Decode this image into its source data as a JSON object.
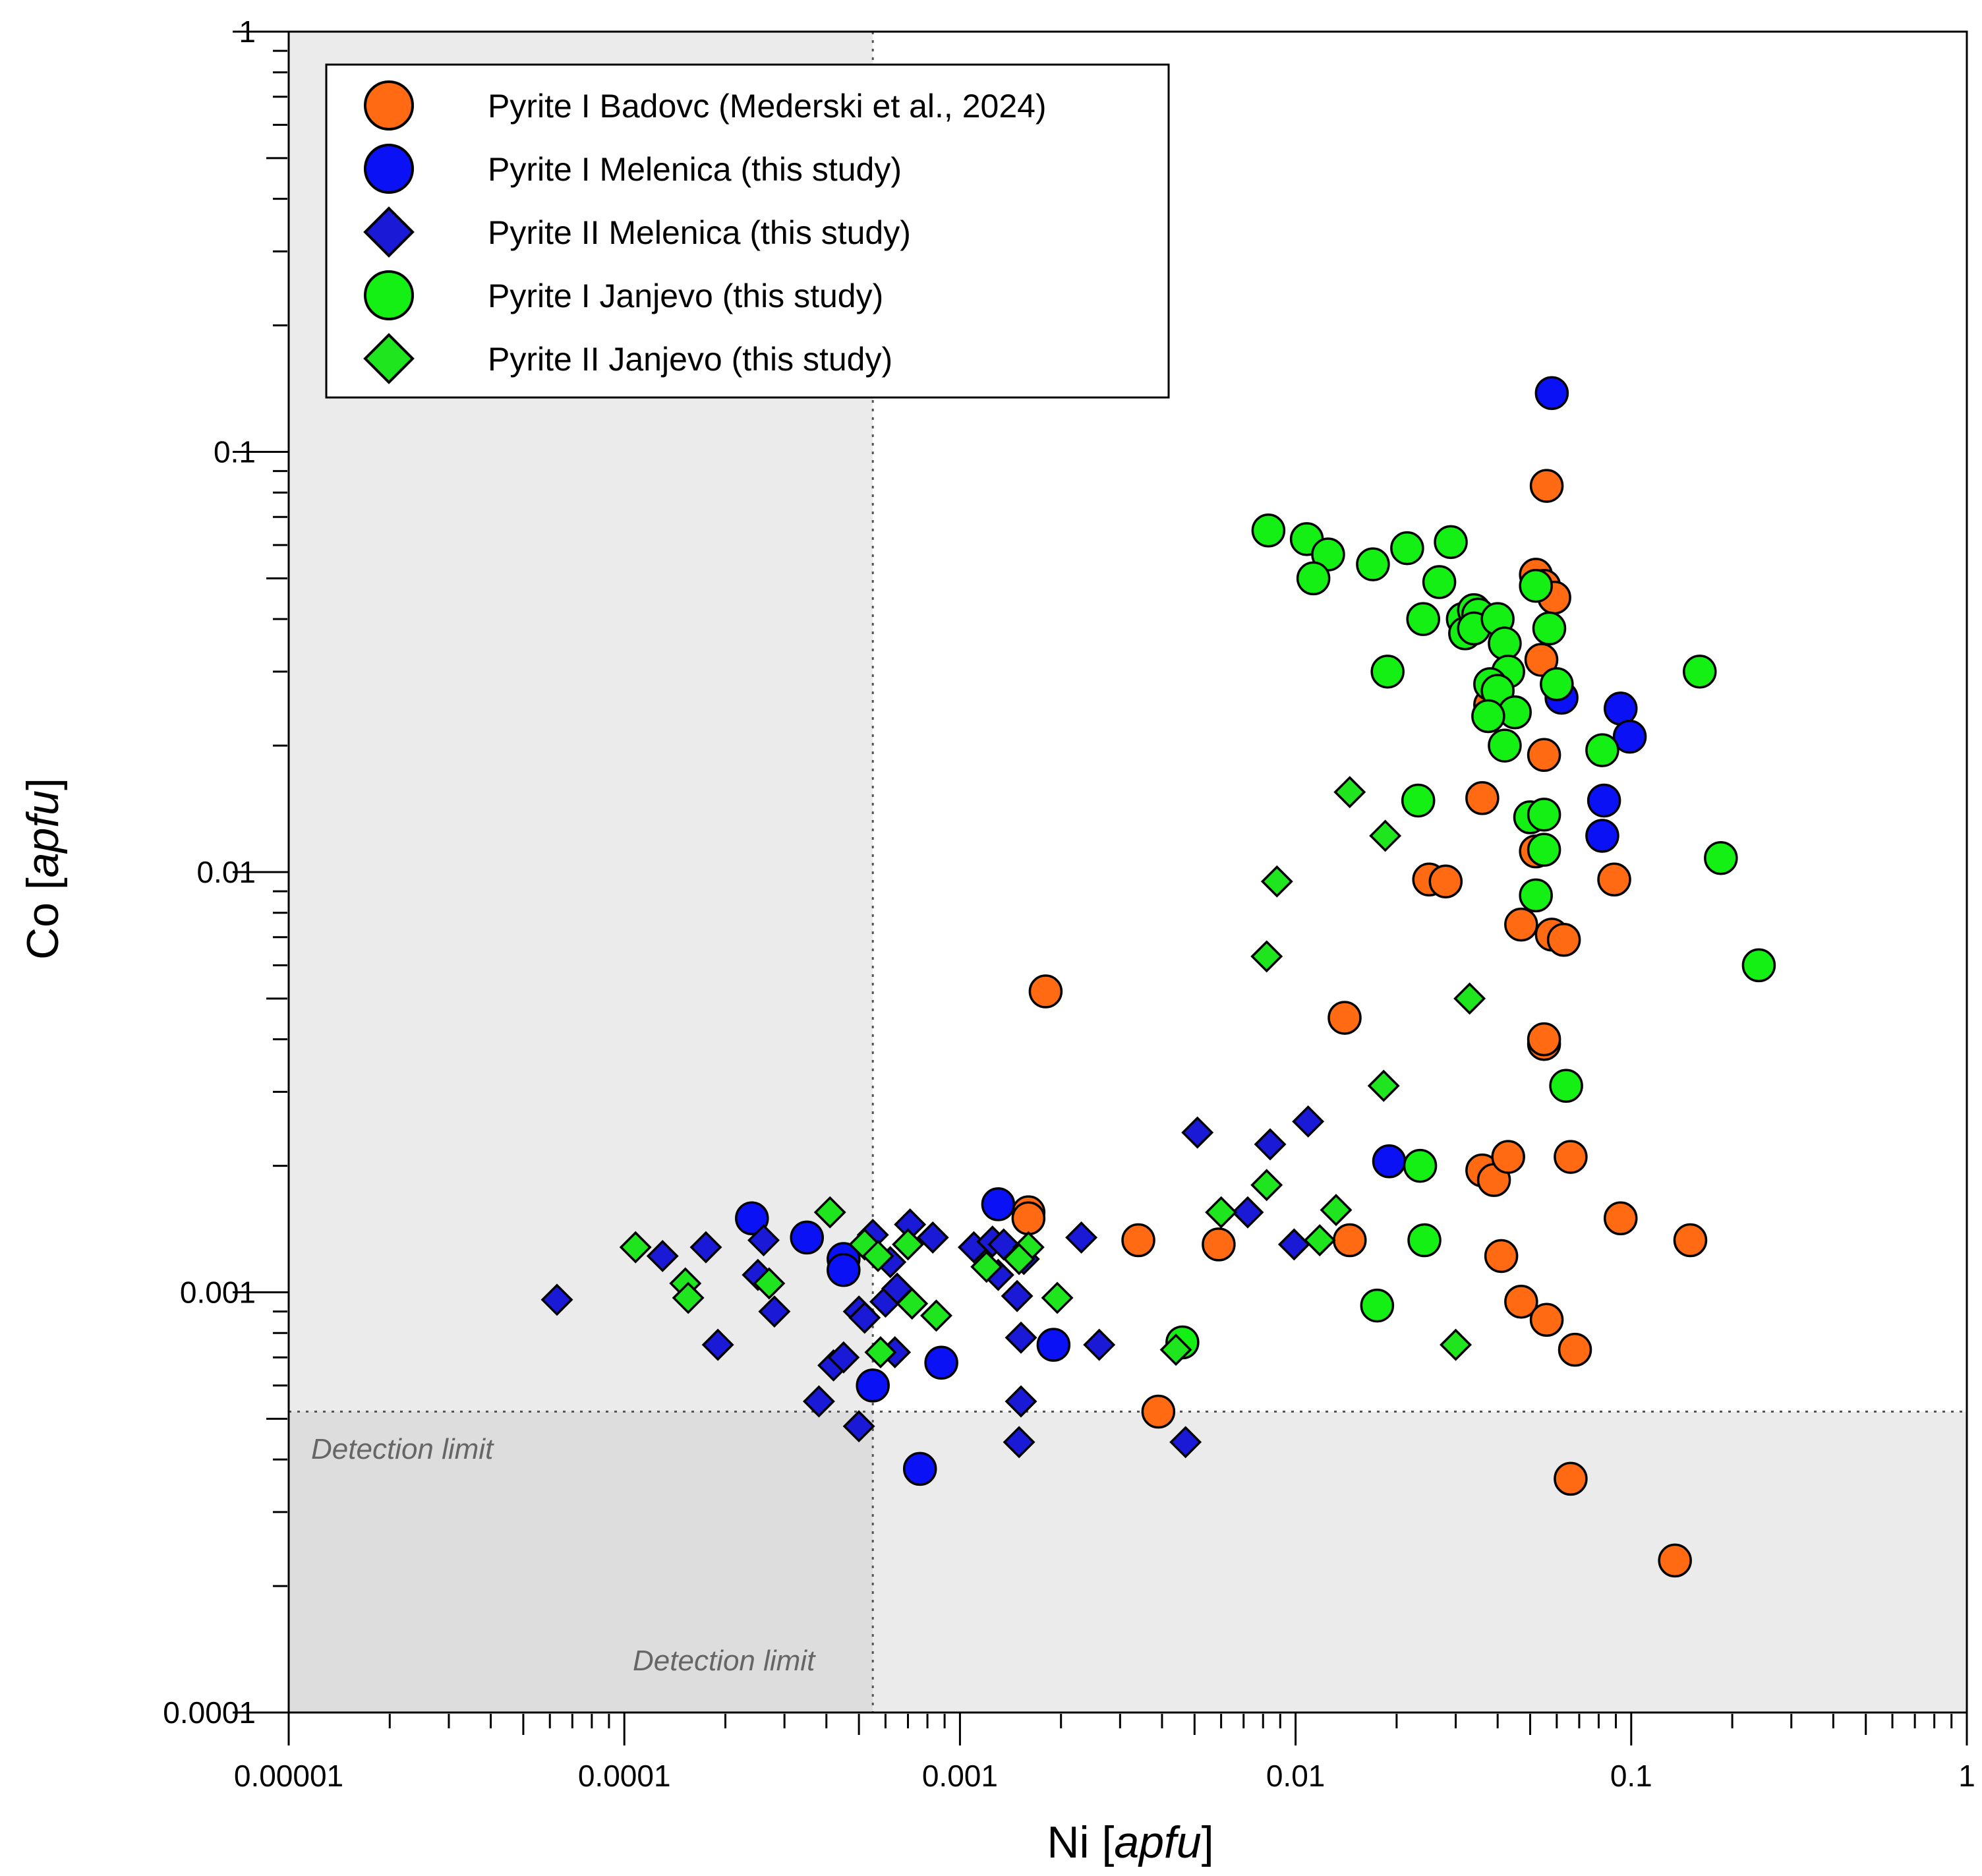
{
  "chart_data": {
    "type": "scatter",
    "title": "",
    "xlabel_main": "Ni [",
    "xlabel_italic": "apfu",
    "xlabel_end": "]",
    "ylabel_main": "Co [",
    "ylabel_italic": "apfu",
    "ylabel_end": "]",
    "xscale": "log",
    "yscale": "log",
    "xlim": [
      1e-05,
      1
    ],
    "ylim": [
      0.0001,
      1
    ],
    "xticks": [
      {
        "value": 1e-05,
        "label": "0.00001"
      },
      {
        "value": 0.0001,
        "label": "0.0001"
      },
      {
        "value": 0.001,
        "label": "0.001"
      },
      {
        "value": 0.01,
        "label": "0.01"
      },
      {
        "value": 0.1,
        "label": "0.1"
      },
      {
        "value": 1,
        "label": "1"
      }
    ],
    "yticks": [
      {
        "value": 0.0001,
        "label": "0.0001"
      },
      {
        "value": 0.001,
        "label": "0.001"
      },
      {
        "value": 0.01,
        "label": "0.01"
      },
      {
        "value": 0.1,
        "label": "0.1"
      },
      {
        "value": 1,
        "label": "1"
      }
    ],
    "detection_limits": {
      "ni": 0.00055,
      "co": 0.00052,
      "label_x": "Detection limit",
      "label_y": "Detection limit"
    },
    "legend_position": "top-left",
    "series": [
      {
        "name": "Pyrite I Badovc (Mederski et al., 2024)",
        "marker": "circle",
        "color": "#ff6a12",
        "points": [
          [
            0.056,
            0.083
          ],
          [
            0.052,
            0.051
          ],
          [
            0.055,
            0.048
          ],
          [
            0.059,
            0.045
          ],
          [
            0.054,
            0.032
          ],
          [
            0.038,
            0.025
          ],
          [
            0.055,
            0.019
          ],
          [
            0.036,
            0.015
          ],
          [
            0.052,
            0.0112
          ],
          [
            0.025,
            0.0096
          ],
          [
            0.028,
            0.0095
          ],
          [
            0.089,
            0.0096
          ],
          [
            0.047,
            0.0075
          ],
          [
            0.058,
            0.0071
          ],
          [
            0.063,
            0.0069
          ],
          [
            0.0018,
            0.0052
          ],
          [
            0.014,
            0.0045
          ],
          [
            0.055,
            0.0039
          ],
          [
            0.055,
            0.004
          ],
          [
            0.036,
            0.00195
          ],
          [
            0.039,
            0.00185
          ],
          [
            0.043,
            0.0021
          ],
          [
            0.066,
            0.0021
          ],
          [
            0.0016,
            0.00155
          ],
          [
            0.0016,
            0.0015
          ],
          [
            0.0034,
            0.00133
          ],
          [
            0.0059,
            0.0013
          ],
          [
            0.0145,
            0.00133
          ],
          [
            0.093,
            0.0015
          ],
          [
            0.15,
            0.00133
          ],
          [
            0.041,
            0.00122
          ],
          [
            0.047,
            0.00095
          ],
          [
            0.056,
            0.00086
          ],
          [
            0.068,
            0.00073
          ],
          [
            0.0039,
            0.00052
          ],
          [
            0.066,
            0.00036
          ],
          [
            0.135,
            0.00023
          ]
        ]
      },
      {
        "name": "Pyrite I Melenica (this study)",
        "marker": "circle",
        "color": "#0a12f5",
        "points": [
          [
            0.058,
            0.138
          ],
          [
            0.062,
            0.026
          ],
          [
            0.093,
            0.0245
          ],
          [
            0.099,
            0.021
          ],
          [
            0.083,
            0.0148
          ],
          [
            0.082,
            0.0122
          ],
          [
            0.019,
            0.00205
          ],
          [
            0.00024,
            0.0015
          ],
          [
            0.00035,
            0.00135
          ],
          [
            0.00045,
            0.0012
          ],
          [
            0.00045,
            0.00113
          ],
          [
            0.0013,
            0.00162
          ],
          [
            0.0019,
            0.00075
          ],
          [
            0.00088,
            0.00068
          ],
          [
            0.00055,
            0.0006
          ],
          [
            0.00076,
            0.00038
          ]
        ]
      },
      {
        "name": "Pyrite II Melenica (this study)",
        "marker": "diamond",
        "color": "#1a1ad6",
        "points": [
          [
            6.3e-05,
            0.00096
          ],
          [
            0.00013,
            0.00122
          ],
          [
            0.000175,
            0.00128
          ],
          [
            0.00019,
            0.00075
          ],
          [
            0.00025,
            0.0011
          ],
          [
            0.00026,
            0.00133
          ],
          [
            0.00028,
            0.0009
          ],
          [
            0.00038,
            0.00055
          ],
          [
            0.00042,
            0.00067
          ],
          [
            0.00045,
            0.0007
          ],
          [
            0.0005,
            0.0009
          ],
          [
            0.0005,
            0.00048
          ],
          [
            0.00052,
            0.00087
          ],
          [
            0.00055,
            0.00137
          ],
          [
            0.0006,
            0.00095
          ],
          [
            0.00062,
            0.00118
          ],
          [
            0.00064,
            0.00072
          ],
          [
            0.00065,
            0.00102
          ],
          [
            0.00071,
            0.00145
          ],
          [
            0.00083,
            0.00135
          ],
          [
            0.0011,
            0.00128
          ],
          [
            0.00125,
            0.00132
          ],
          [
            0.00135,
            0.0013
          ],
          [
            0.00148,
            0.00098
          ],
          [
            0.00152,
            0.00078
          ],
          [
            0.00155,
            0.0012
          ],
          [
            0.00152,
            0.00055
          ],
          [
            0.0015,
            0.00044
          ],
          [
            0.0023,
            0.00135
          ],
          [
            0.0026,
            0.00075
          ],
          [
            0.0013,
            0.0011
          ],
          [
            0.0047,
            0.00044
          ],
          [
            0.0051,
            0.0024
          ],
          [
            0.0072,
            0.00155
          ],
          [
            0.0084,
            0.00225
          ],
          [
            0.0099,
            0.0013
          ],
          [
            0.0109,
            0.00255
          ]
        ]
      },
      {
        "name": "Pyrite I Janjevo (this study)",
        "marker": "circle",
        "color": "#14f014",
        "points": [
          [
            0.0083,
            0.065
          ],
          [
            0.0108,
            0.062
          ],
          [
            0.0125,
            0.057
          ],
          [
            0.0113,
            0.05
          ],
          [
            0.017,
            0.054
          ],
          [
            0.0215,
            0.059
          ],
          [
            0.029,
            0.061
          ],
          [
            0.0268,
            0.049
          ],
          [
            0.024,
            0.04
          ],
          [
            0.0315,
            0.04
          ],
          [
            0.034,
            0.042
          ],
          [
            0.035,
            0.041
          ],
          [
            0.032,
            0.037
          ],
          [
            0.034,
            0.038
          ],
          [
            0.04,
            0.04
          ],
          [
            0.042,
            0.035
          ],
          [
            0.043,
            0.03
          ],
          [
            0.038,
            0.028
          ],
          [
            0.04,
            0.027
          ],
          [
            0.045,
            0.024
          ],
          [
            0.0375,
            0.0235
          ],
          [
            0.042,
            0.02
          ],
          [
            0.052,
            0.048
          ],
          [
            0.057,
            0.038
          ],
          [
            0.06,
            0.028
          ],
          [
            0.0188,
            0.03
          ],
          [
            0.082,
            0.0195
          ],
          [
            0.16,
            0.03
          ],
          [
            0.0232,
            0.0148
          ],
          [
            0.05,
            0.0135
          ],
          [
            0.055,
            0.0137
          ],
          [
            0.055,
            0.0113
          ],
          [
            0.052,
            0.0088
          ],
          [
            0.185,
            0.0108
          ],
          [
            0.24,
            0.006
          ],
          [
            0.064,
            0.0031
          ],
          [
            0.0235,
            0.002
          ],
          [
            0.0242,
            0.00133
          ],
          [
            0.0175,
            0.00093
          ],
          [
            0.0046,
            0.00076
          ]
        ]
      },
      {
        "name": "Pyrite II Janjevo (this study)",
        "marker": "diamond",
        "color": "#1ee51e",
        "points": [
          [
            0.000108,
            0.00128
          ],
          [
            0.000152,
            0.00105
          ],
          [
            0.000155,
            0.00097
          ],
          [
            0.00027,
            0.00105
          ],
          [
            0.00041,
            0.00155
          ],
          [
            0.00052,
            0.0013
          ],
          [
            0.00057,
            0.00122
          ],
          [
            0.0007,
            0.0013
          ],
          [
            0.00072,
            0.00094
          ],
          [
            0.00085,
            0.00088
          ],
          [
            0.0012,
            0.00115
          ],
          [
            0.0016,
            0.00128
          ],
          [
            0.00195,
            0.00097
          ],
          [
            0.0015,
            0.0012
          ],
          [
            0.00058,
            0.00072
          ],
          [
            0.0044,
            0.00073
          ],
          [
            0.006,
            0.00155
          ],
          [
            0.0082,
            0.0018
          ],
          [
            0.0082,
            0.0063
          ],
          [
            0.0088,
            0.0095
          ],
          [
            0.0145,
            0.0155
          ],
          [
            0.0185,
            0.0122
          ],
          [
            0.0183,
            0.0031
          ],
          [
            0.033,
            0.005
          ],
          [
            0.0118,
            0.00133
          ],
          [
            0.0132,
            0.00157
          ],
          [
            0.03,
            0.00075
          ]
        ]
      }
    ]
  }
}
